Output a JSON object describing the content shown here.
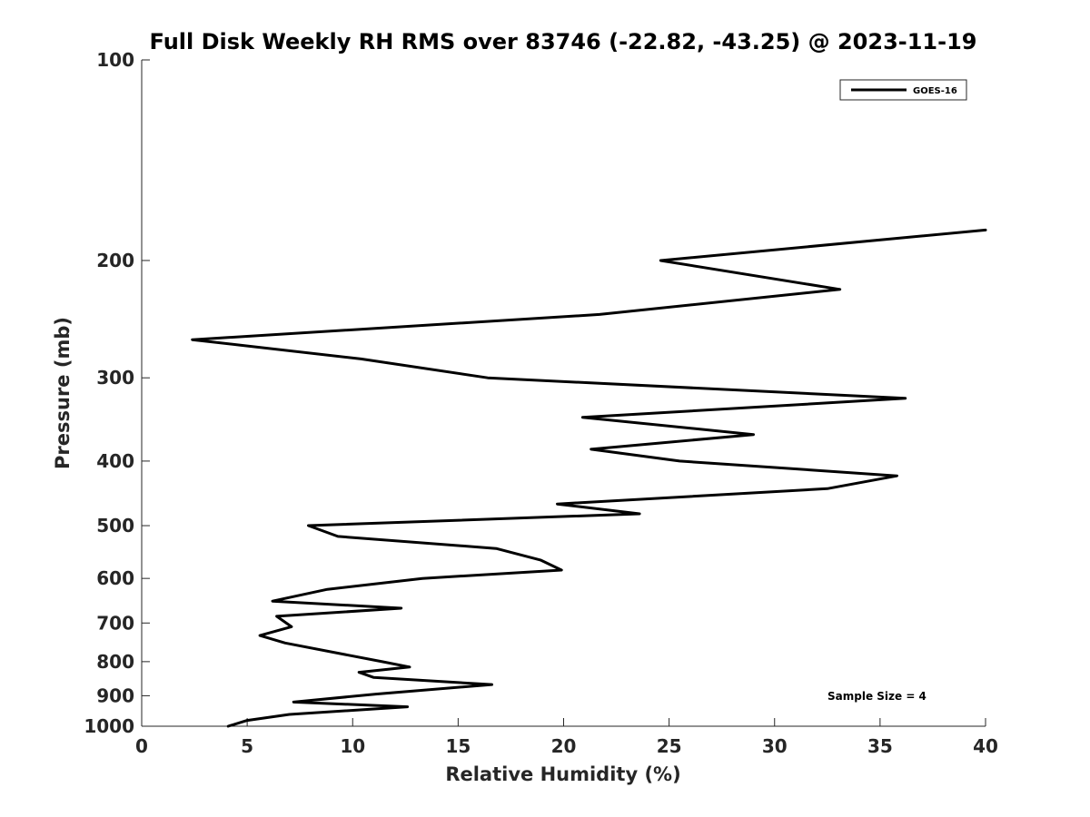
{
  "chart_data": {
    "type": "line",
    "title": "Full Disk Weekly RH RMS over 83746 (-22.82, -43.25) @ 2023-11-19",
    "xlabel": "Relative Humidity (%)",
    "ylabel": "Pressure (mb)",
    "xlim": [
      0,
      40
    ],
    "ylim": [
      100,
      1000
    ],
    "y_scale": "log",
    "y_reversed": true,
    "x_ticks": [
      0,
      5,
      10,
      15,
      20,
      25,
      30,
      35,
      40
    ],
    "y_ticks": [
      100,
      200,
      300,
      400,
      500,
      600,
      700,
      800,
      900,
      1000
    ],
    "grid": false,
    "legend_position": "top-right",
    "annotation": "Sample Size = 4",
    "series": [
      {
        "name": "GOES-16",
        "color": "#000000",
        "points": [
          {
            "x": 40.0,
            "y": 180
          },
          {
            "x": 24.6,
            "y": 200
          },
          {
            "x": 33.1,
            "y": 221
          },
          {
            "x": 21.7,
            "y": 241
          },
          {
            "x": 2.4,
            "y": 263
          },
          {
            "x": 10.4,
            "y": 281
          },
          {
            "x": 16.4,
            "y": 300
          },
          {
            "x": 36.2,
            "y": 322
          },
          {
            "x": 20.9,
            "y": 344
          },
          {
            "x": 29.0,
            "y": 365
          },
          {
            "x": 21.3,
            "y": 384
          },
          {
            "x": 25.5,
            "y": 400
          },
          {
            "x": 35.8,
            "y": 421
          },
          {
            "x": 32.5,
            "y": 440
          },
          {
            "x": 19.7,
            "y": 464
          },
          {
            "x": 23.6,
            "y": 480
          },
          {
            "x": 7.9,
            "y": 500
          },
          {
            "x": 9.3,
            "y": 519
          },
          {
            "x": 16.8,
            "y": 541
          },
          {
            "x": 18.9,
            "y": 563
          },
          {
            "x": 19.9,
            "y": 583
          },
          {
            "x": 13.3,
            "y": 600
          },
          {
            "x": 8.8,
            "y": 623
          },
          {
            "x": 6.2,
            "y": 649
          },
          {
            "x": 12.3,
            "y": 665
          },
          {
            "x": 6.4,
            "y": 684
          },
          {
            "x": 7.1,
            "y": 709
          },
          {
            "x": 5.6,
            "y": 731
          },
          {
            "x": 6.8,
            "y": 750
          },
          {
            "x": 11.4,
            "y": 800
          },
          {
            "x": 12.7,
            "y": 815
          },
          {
            "x": 10.3,
            "y": 830
          },
          {
            "x": 11.0,
            "y": 845
          },
          {
            "x": 16.6,
            "y": 866
          },
          {
            "x": 11.1,
            "y": 895
          },
          {
            "x": 7.2,
            "y": 920
          },
          {
            "x": 12.6,
            "y": 935
          },
          {
            "x": 7.0,
            "y": 960
          },
          {
            "x": 5.0,
            "y": 980
          },
          {
            "x": 4.1,
            "y": 1000
          }
        ]
      }
    ]
  }
}
